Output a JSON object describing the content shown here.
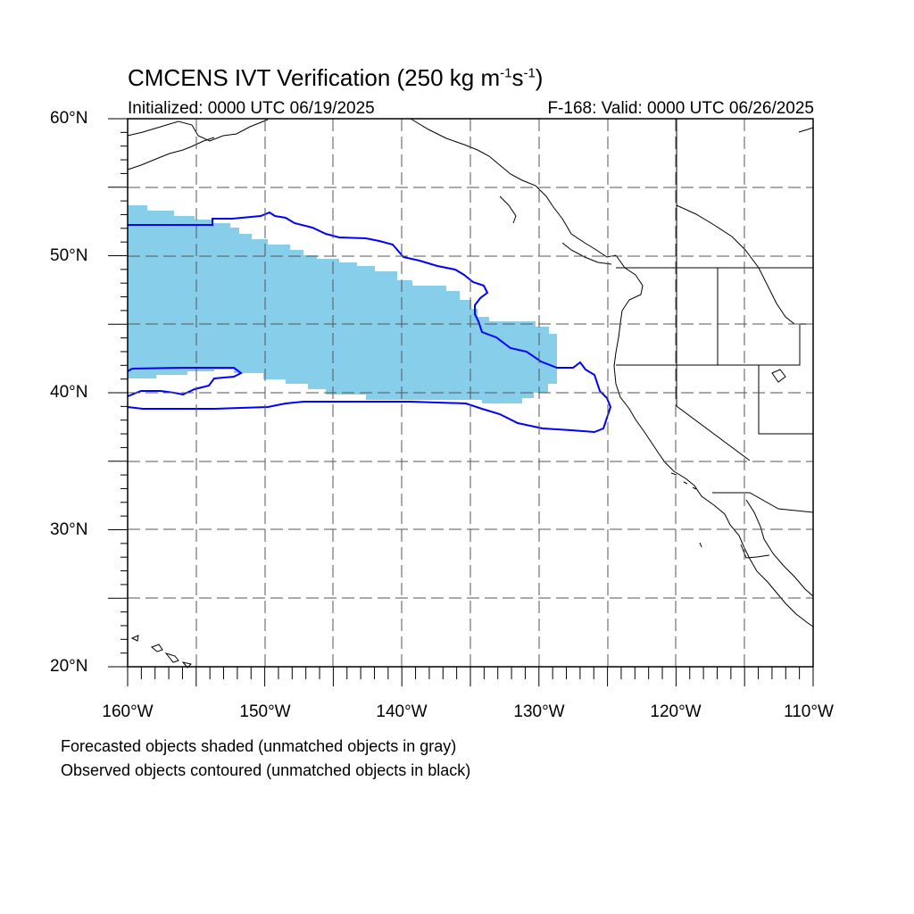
{
  "title": {
    "main": "CMCENS IVT Verification (250 kg m",
    "sup1": "-1",
    "mid": "s",
    "sup2": "-1",
    "end": ")"
  },
  "subtitle_left": "Initialized: 0000 UTC 06/19/2025",
  "subtitle_right": "F-168: Valid: 0000 UTC 06/26/2025",
  "lat_labels": [
    "60°N",
    "50°N",
    "40°N",
    "30°N",
    "20°N"
  ],
  "lon_labels": [
    "160°W",
    "150°W",
    "140°W",
    "130°W",
    "120°W",
    "110°W"
  ],
  "notes": [
    "Forecasted objects shaded (unmatched objects in gray)",
    "Observed objects contoured (unmatched objects in black)"
  ],
  "colors": {
    "forecast_fill": "#87ceeb",
    "observed_contour": "#0000ff",
    "coastline": "#000000",
    "grid": "#555555"
  },
  "map_extent": {
    "lon_min": -160,
    "lon_max": -110,
    "lat_min": 20,
    "lat_max": 60
  }
}
